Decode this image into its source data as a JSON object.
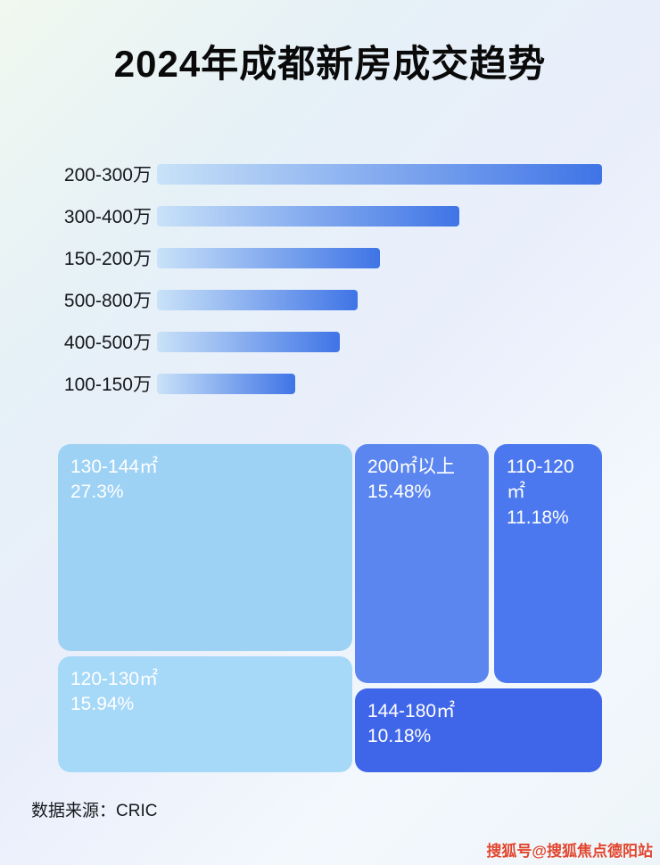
{
  "page": {
    "title": "2024年成都新房成交趋势",
    "source_label": "数据来源：CRIC",
    "watermark": "搜狐号@搜狐焦点德阳站"
  },
  "colors": {
    "title_color": "#0a0a0a",
    "bar_gradient_start": "#c9e2f8",
    "bar_gradient_end": "#3f74e6",
    "watermark_color": "#e0452f"
  },
  "chart_data": [
    {
      "type": "bar",
      "orientation": "horizontal",
      "title": "2024年成都新房成交趋势",
      "categories": [
        "200-300万",
        "300-400万",
        "150-200万",
        "500-800万",
        "400-500万",
        "100-150万"
      ],
      "values": [
        100,
        68,
        50,
        45,
        41,
        31
      ],
      "value_note": "relative bar lengths (% of longest bar); no numeric axis shown in image",
      "xlabel": "",
      "ylabel": "",
      "grid": false,
      "legend": false
    },
    {
      "type": "treemap",
      "title": "",
      "items": [
        {
          "id": "block-130-144",
          "label": "130-144㎡",
          "percent": "27.3%",
          "value": 27.3,
          "color": "#9ed2f5"
        },
        {
          "id": "block-120-130",
          "label": "120-130㎡",
          "percent": "15.94%",
          "value": 15.94,
          "color": "#a6d8f8"
        },
        {
          "id": "block-200-plus",
          "label": "200㎡以上",
          "percent": "15.48%",
          "value": 15.48,
          "color": "#5c86ef"
        },
        {
          "id": "block-110-120",
          "label": "110-120㎡",
          "percent": "11.18%",
          "value": 11.18,
          "color": "#4b78ee"
        },
        {
          "id": "block-144-180",
          "label": "144-180㎡",
          "percent": "10.18%",
          "value": 10.18,
          "color": "#3f66e8"
        }
      ]
    }
  ]
}
